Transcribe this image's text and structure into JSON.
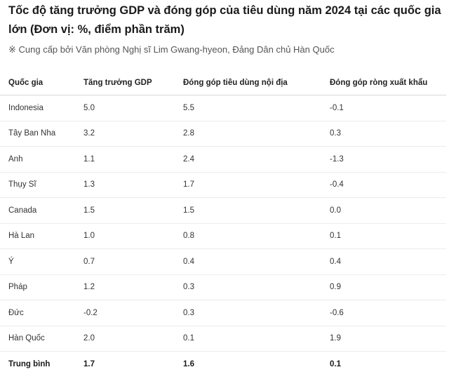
{
  "title": "Tốc độ tăng trưởng GDP và đóng góp của tiêu dùng năm 2024 tại các quốc gia lớn (Đơn vị: %, điểm phần trăm)",
  "subtitle": "※ Cung cấp bởi Văn phòng Nghị sĩ Lim Gwang-hyeon, Đảng Dân chủ Hàn Quốc",
  "table": {
    "headers": [
      "Quốc gia",
      "Tăng trưởng GDP",
      "Đóng góp tiêu dùng nội địa",
      "Đóng góp ròng xuất khẩu"
    ],
    "rows": [
      [
        "Indonesia",
        "5.0",
        "5.5",
        "-0.1"
      ],
      [
        "Tây Ban Nha",
        "3.2",
        "2.8",
        "0.3"
      ],
      [
        "Anh",
        "1.1",
        "2.4",
        "-1.3"
      ],
      [
        "Thụy Sĩ",
        "1.3",
        "1.7",
        "-0.4"
      ],
      [
        "Canada",
        "1.5",
        "1.5",
        "0.0"
      ],
      [
        "Hà Lan",
        "1.0",
        "0.8",
        "0.1"
      ],
      [
        "Ý",
        "0.7",
        "0.4",
        "0.4"
      ],
      [
        "Pháp",
        "1.2",
        "0.3",
        "0.9"
      ],
      [
        "Đức",
        "-0.2",
        "0.3",
        "-0.6"
      ],
      [
        "Hàn Quốc",
        "2.0",
        "0.1",
        "1.9"
      ]
    ],
    "average": [
      "Trung bình",
      "1.7",
      "1.6",
      "0.1"
    ]
  }
}
